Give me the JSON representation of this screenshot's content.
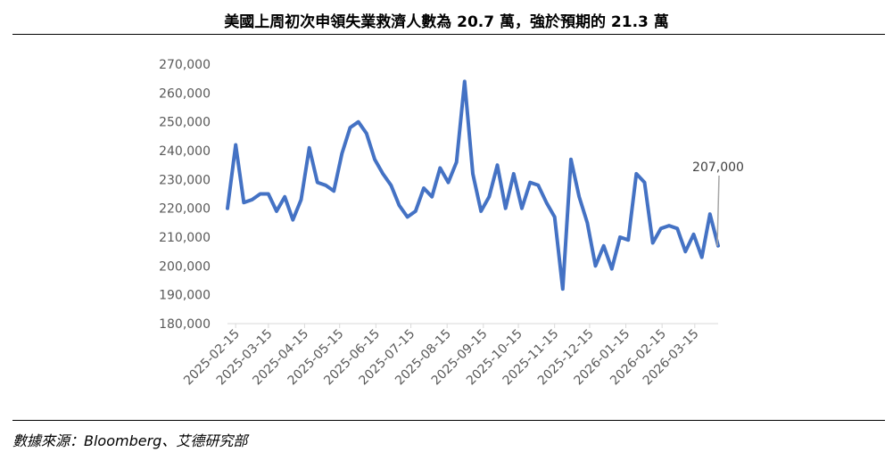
{
  "header": {
    "title": "美國上周初次申領失業救濟人數為 20.7 萬，強於預期的 21.3 萬"
  },
  "footer": {
    "source": "數據來源：Bloomberg、艾德研究部"
  },
  "colors": {
    "line": "#4472C4",
    "axis": "#D9D9D9",
    "leader": "#A6A6A6"
  },
  "chart_data": {
    "type": "line",
    "title": "",
    "xlabel": "",
    "ylabel": "",
    "ylim": [
      180000,
      270000
    ],
    "y_ticks": [
      "180,000",
      "190,000",
      "200,000",
      "210,000",
      "220,000",
      "230,000",
      "240,000",
      "250,000",
      "260,000",
      "270,000"
    ],
    "y_tick_values": [
      180000,
      190000,
      200000,
      210000,
      220000,
      230000,
      240000,
      250000,
      260000,
      270000
    ],
    "x_ticks": [
      "2025-02-15",
      "2025-03-15",
      "2025-04-15",
      "2025-05-15",
      "2025-06-15",
      "2025-07-15",
      "2025-08-15",
      "2025-09-15",
      "2025-10-15",
      "2025-11-15",
      "2025-12-15",
      "2026-01-15",
      "2026-02-15",
      "2026-03-15"
    ],
    "grid": false,
    "legend": "none",
    "series": [
      {
        "x": [
          "2025-02-08",
          "2025-02-15",
          "2025-02-22",
          "2025-03-01",
          "2025-03-08",
          "2025-03-15",
          "2025-03-22",
          "2025-03-29",
          "2025-04-05",
          "2025-04-12",
          "2025-04-19",
          "2025-04-26",
          "2025-05-03",
          "2025-05-10",
          "2025-05-17",
          "2025-05-24",
          "2025-05-31",
          "2025-06-07",
          "2025-06-14",
          "2025-06-21",
          "2025-06-28",
          "2025-07-05",
          "2025-07-12",
          "2025-07-19",
          "2025-07-26",
          "2025-08-02",
          "2025-08-09",
          "2025-08-16",
          "2025-08-23",
          "2025-08-30",
          "2025-09-06",
          "2025-09-13",
          "2025-09-20",
          "2025-09-27",
          "2025-10-04",
          "2025-10-11",
          "2025-10-18",
          "2025-10-25",
          "2025-11-01",
          "2025-11-08",
          "2025-11-15",
          "2025-11-22",
          "2025-11-29",
          "2025-12-06",
          "2025-12-13",
          "2025-12-20",
          "2025-12-27",
          "2026-01-03",
          "2026-01-10",
          "2026-01-17",
          "2026-01-24",
          "2026-01-31",
          "2026-02-07",
          "2026-02-14",
          "2026-02-21",
          "2026-02-28",
          "2026-03-07",
          "2026-03-14",
          "2026-03-21",
          "2026-03-28",
          "2026-04-04"
        ],
        "values": [
          220000,
          242000,
          222000,
          223000,
          225000,
          225000,
          219000,
          224000,
          216000,
          223000,
          241000,
          229000,
          228000,
          226000,
          239000,
          248000,
          250000,
          246000,
          237000,
          232000,
          228000,
          221000,
          217000,
          219000,
          227000,
          224000,
          234000,
          229000,
          236000,
          264000,
          232000,
          219000,
          224000,
          235000,
          220000,
          232000,
          220000,
          229000,
          228000,
          222000,
          217000,
          192000,
          237000,
          224000,
          215000,
          200000,
          207000,
          199000,
          210000,
          209000,
          232000,
          229000,
          208000,
          213000,
          214000,
          213000,
          205000,
          211000,
          203000,
          218000,
          207000
        ]
      }
    ],
    "annotations": [
      {
        "text": "207,000",
        "x": "2026-04-04",
        "y": 207000
      }
    ]
  }
}
